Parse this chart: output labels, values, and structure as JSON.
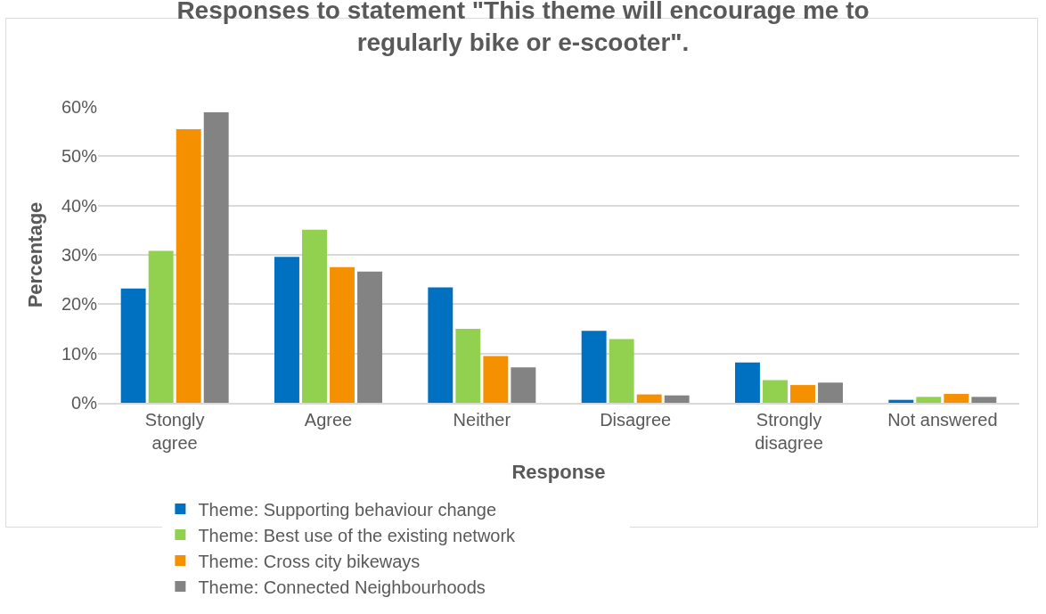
{
  "chart_data": {
    "type": "bar",
    "title": "Responses to statement \"This theme will encourage me to regularly bike or e-scooter\".",
    "xlabel": "Response",
    "ylabel": "Percentage",
    "categories": [
      "Stongly agree",
      "Agree",
      "Neither",
      "Disagree",
      "Strongly disagree",
      "Not answered"
    ],
    "series": [
      {
        "name": "Theme: Supporting behaviour change",
        "color": "#0070c0",
        "values": [
          23.2,
          29.6,
          23.4,
          14.6,
          8.2,
          0.6
        ]
      },
      {
        "name": "Theme: Best use of the existing network",
        "color": "#92d050",
        "values": [
          30.8,
          35.1,
          15.0,
          12.9,
          4.6,
          1.2
        ]
      },
      {
        "name": "Theme: Cross city bikeways",
        "color": "#f59100",
        "values": [
          55.5,
          27.5,
          9.5,
          1.7,
          3.6,
          1.8
        ]
      },
      {
        "name": "Theme: Connected Neighbourhoods",
        "color": "#838383",
        "values": [
          58.9,
          26.6,
          7.2,
          1.5,
          4.1,
          1.2
        ]
      }
    ],
    "ylim": [
      0,
      60
    ],
    "yticks": [
      {
        "value": 0,
        "label": "0%"
      },
      {
        "value": 10,
        "label": "10%"
      },
      {
        "value": 20,
        "label": "20%"
      },
      {
        "value": 30,
        "label": "30%"
      },
      {
        "value": 40,
        "label": "40%"
      },
      {
        "value": 50,
        "label": "50%"
      },
      {
        "value": 60,
        "label": "60%"
      }
    ],
    "grid": "y",
    "legend": "bottom"
  }
}
